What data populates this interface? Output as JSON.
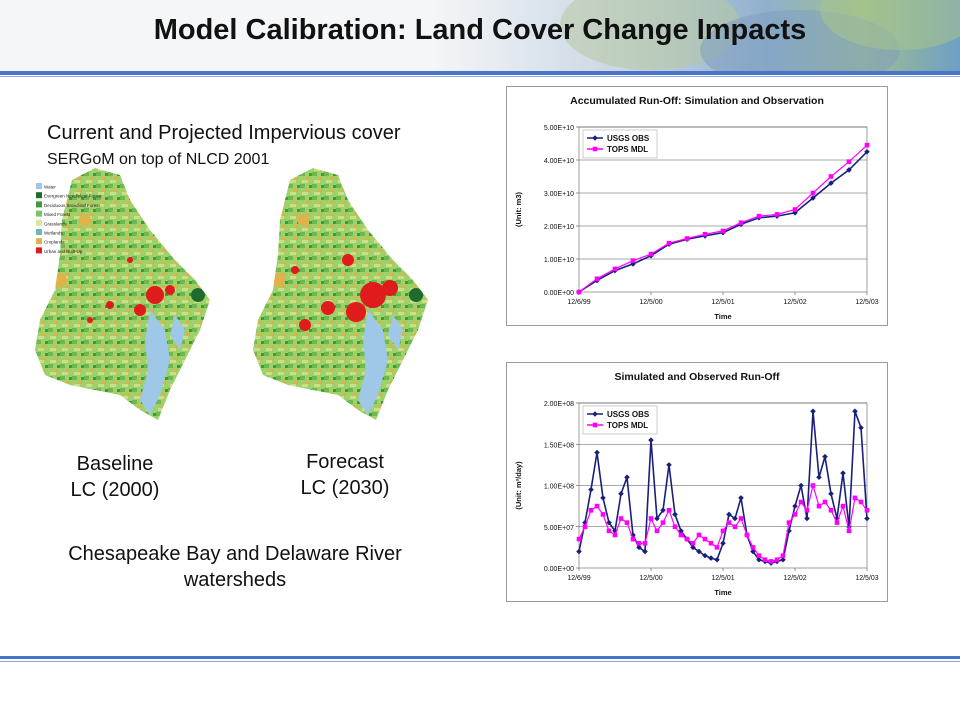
{
  "page": {
    "title": "Model Calibration: Land Cover Change Impacts",
    "subtitle": "Current and Projected Impervious cover",
    "subsubtitle": "SERGoM on top of NLCD 2001",
    "baseline_label": [
      "Baseline",
      "LC (2000)"
    ],
    "forecast_label": [
      "Forecast",
      "LC (2030)"
    ],
    "region_label": [
      "Chesapeake Bay and Delaware River",
      "watersheds"
    ],
    "map_legend": [
      "Water",
      "Evergreen Needleleaf Forest",
      "Deciduous Broadleaf Forest",
      "Mixed Forest",
      "Grasslands",
      "Wetlands",
      "Croplands",
      "Urban and Built-Up"
    ],
    "map_legend_colors": [
      "#9ec7e8",
      "#1f6b2e",
      "#3f9a3a",
      "#7cc36b",
      "#d8e69a",
      "#6fb7b0",
      "#e2b24a",
      "#e01b1b"
    ],
    "colors": {
      "usgs": "#1a1f7a",
      "tops": "#ff00ff",
      "header_rule": "#4a74c9"
    }
  },
  "chart_data": [
    {
      "type": "line",
      "title": "Accumulated Run-Off: Simulation and Observation",
      "xlabel": "Time",
      "ylabel": "(Unit: m3)",
      "x_ticks": [
        "12/6/99",
        "12/5/00",
        "12/5/01",
        "12/5/02",
        "12/5/03"
      ],
      "y_ticks": [
        "0.00E+00",
        "1.00E+10",
        "2.00E+10",
        "3.00E+10",
        "4.00E+10",
        "5.00E+10"
      ],
      "ylim": [
        0,
        50000000000
      ],
      "grid": true,
      "legend_position": "top-left",
      "x": [
        "12/6/99",
        "3/99",
        "6/00",
        "9/00",
        "12/5/00",
        "3/01",
        "6/01",
        "9/01",
        "12/5/01",
        "3/02",
        "6/02",
        "9/02",
        "12/5/02",
        "3/03",
        "6/03",
        "9/03",
        "12/5/03"
      ],
      "series": [
        {
          "name": "USGS OBS",
          "color": "#1a1f7a",
          "values": [
            0,
            3500000000,
            6500000000,
            8500000000,
            11000000000,
            14500000000,
            16000000000,
            17000000000,
            18000000000,
            20500000000,
            22500000000,
            23000000000,
            24000000000,
            28500000000,
            33000000000,
            37000000000,
            42500000000
          ]
        },
        {
          "name": "TOPS MDL",
          "color": "#ff00ff",
          "values": [
            0,
            4000000000,
            7000000000,
            9500000000,
            11500000000,
            14800000000,
            16200000000,
            17500000000,
            18500000000,
            21000000000,
            23000000000,
            23500000000,
            25000000000,
            30000000000,
            35000000000,
            39500000000,
            44500000000
          ]
        }
      ]
    },
    {
      "type": "line",
      "title": "Simulated and Observed Run-Off",
      "xlabel": "Time",
      "ylabel": "(Unit: m³/day)",
      "x_ticks": [
        "12/6/99",
        "12/5/00",
        "12/5/01",
        "12/5/02",
        "12/5/03"
      ],
      "y_ticks": [
        "0.00E+00",
        "5.00E+07",
        "1.00E+08",
        "1.50E+08",
        "2.00E+08"
      ],
      "ylim": [
        0,
        200000000
      ],
      "grid": true,
      "legend_position": "top-left",
      "x": [
        "12/6/99",
        "1/00",
        "2/00",
        "3/00",
        "4/00",
        "5/00",
        "6/00",
        "7/00",
        "8/00",
        "9/00",
        "10/00",
        "11/00",
        "12/5/00",
        "1/01",
        "2/01",
        "3/01",
        "4/01",
        "5/01",
        "6/01",
        "7/01",
        "8/01",
        "9/01",
        "10/01",
        "11/01",
        "12/5/01",
        "1/02",
        "2/02",
        "3/02",
        "4/02",
        "5/02",
        "6/02",
        "7/02",
        "8/02",
        "9/02",
        "10/02",
        "11/02",
        "12/5/02",
        "1/03",
        "2/03",
        "3/03",
        "4/03",
        "5/03",
        "6/03",
        "7/03",
        "8/03",
        "9/03",
        "10/03",
        "11/03",
        "12/5/03"
      ],
      "series": [
        {
          "name": "USGS OBS",
          "color": "#1a1f7a",
          "values": [
            20000000,
            55000000,
            95000000,
            140000000,
            85000000,
            55000000,
            45000000,
            90000000,
            110000000,
            40000000,
            25000000,
            20000000,
            155000000,
            60000000,
            70000000,
            125000000,
            65000000,
            45000000,
            35000000,
            25000000,
            20000000,
            15000000,
            12000000,
            10000000,
            30000000,
            65000000,
            60000000,
            85000000,
            40000000,
            20000000,
            10000000,
            8000000,
            6000000,
            8000000,
            10000000,
            45000000,
            75000000,
            100000000,
            60000000,
            190000000,
            110000000,
            135000000,
            90000000,
            60000000,
            115000000,
            50000000,
            190000000,
            170000000,
            60000000
          ]
        },
        {
          "name": "TOPS MDL",
          "color": "#ff00ff",
          "values": [
            35000000,
            50000000,
            70000000,
            75000000,
            65000000,
            45000000,
            40000000,
            60000000,
            55000000,
            35000000,
            30000000,
            30000000,
            60000000,
            45000000,
            55000000,
            70000000,
            50000000,
            40000000,
            35000000,
            30000000,
            40000000,
            35000000,
            30000000,
            25000000,
            45000000,
            55000000,
            50000000,
            60000000,
            40000000,
            25000000,
            15000000,
            10000000,
            8000000,
            10000000,
            15000000,
            55000000,
            65000000,
            80000000,
            70000000,
            100000000,
            75000000,
            80000000,
            70000000,
            55000000,
            75000000,
            45000000,
            85000000,
            80000000,
            70000000
          ]
        }
      ]
    }
  ]
}
